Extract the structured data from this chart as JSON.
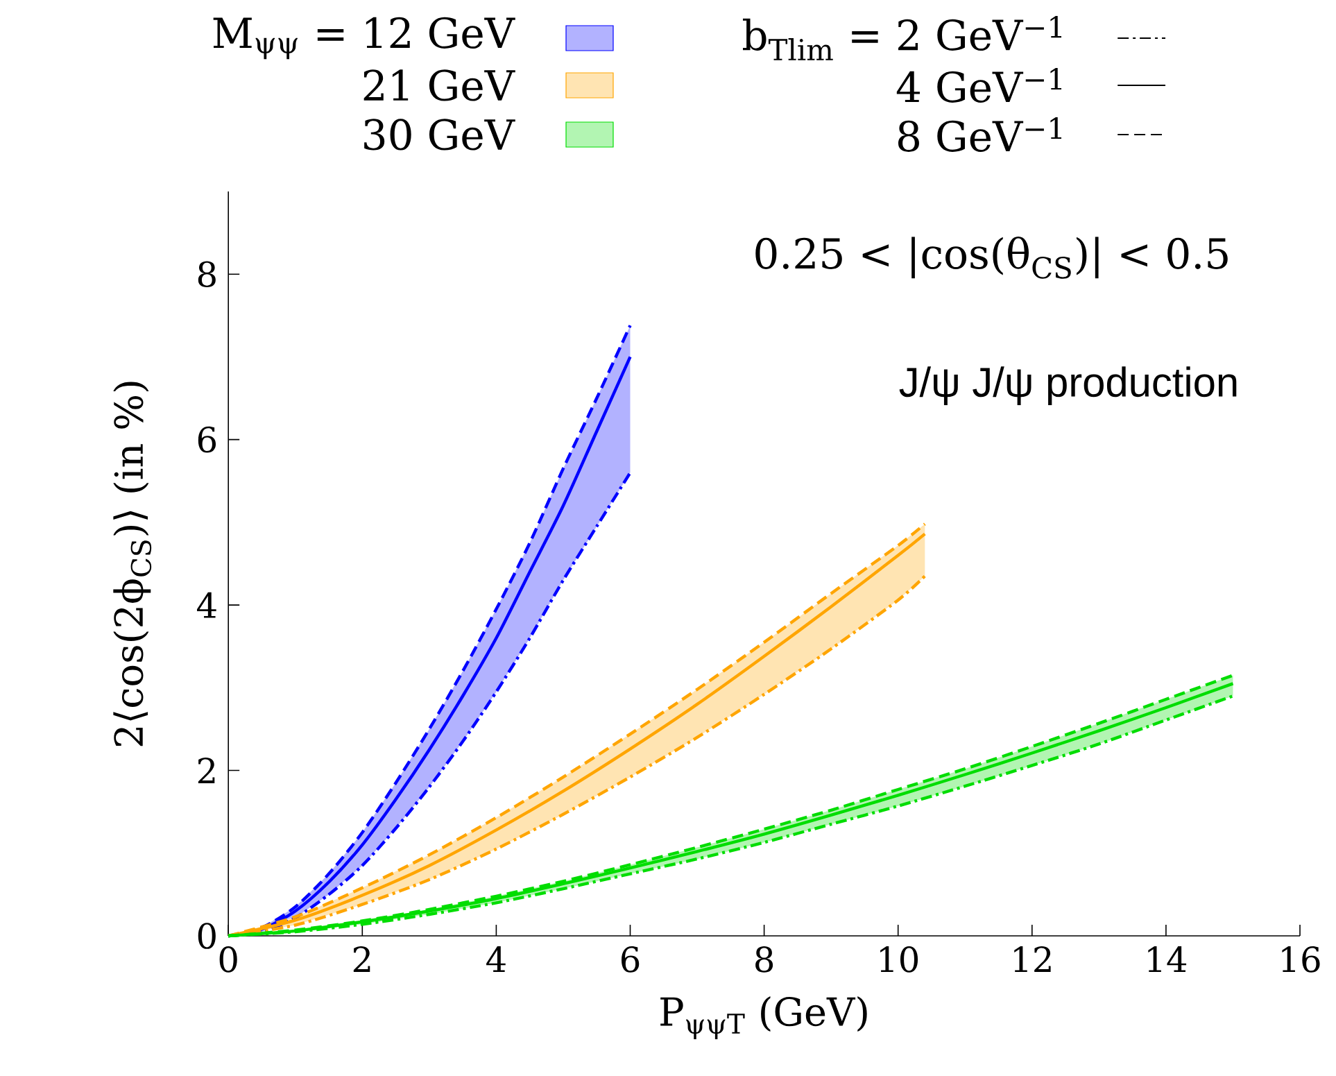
{
  "chart_data": {
    "type": "line",
    "xlabel": "P$_{ψψT}$ (GeV)",
    "ylabel": "2⟨cos(2ϕ$_{CS}$)⟩ (in %)",
    "xlim": [
      0,
      16
    ],
    "ylim": [
      0,
      9
    ],
    "xticks": [
      0,
      2,
      4,
      6,
      8,
      10,
      12,
      14,
      16
    ],
    "yticks": [
      0,
      2,
      4,
      6,
      8
    ],
    "legend": "top",
    "marker": "none",
    "series": [
      {
        "color": "#0000ff",
        "line_style": "dashdot",
        "x": [
          0,
          0.5,
          1,
          1.5,
          2,
          2.5,
          3,
          3.5,
          4,
          4.5,
          5,
          5.5,
          6
        ],
        "values": [
          0,
          0.05,
          0.22,
          0.5,
          0.85,
          1.3,
          1.8,
          2.35,
          2.95,
          3.6,
          4.3,
          4.95,
          5.6
        ]
      },
      {
        "name": "M$_{ψψ}$ = 12 GeV",
        "color": "#0000ff",
        "line_style": "solid",
        "x": [
          0,
          0.5,
          1,
          1.5,
          2,
          2.5,
          3,
          3.5,
          4,
          4.5,
          5,
          5.5,
          6
        ],
        "values": [
          0,
          0.08,
          0.3,
          0.65,
          1.1,
          1.65,
          2.25,
          2.9,
          3.6,
          4.4,
          5.2,
          6.1,
          7.0
        ],
        "upper": [
          0,
          0.1,
          0.35,
          0.75,
          1.25,
          1.85,
          2.5,
          3.2,
          3.95,
          4.75,
          5.65,
          6.5,
          7.38
        ],
        "lower": [
          0,
          0.05,
          0.22,
          0.5,
          0.85,
          1.3,
          1.8,
          2.35,
          2.95,
          3.6,
          4.3,
          4.95,
          5.6
        ]
      },
      {
        "color": "#0000ff",
        "line_style": "dashed",
        "x": [
          0,
          0.5,
          1,
          1.5,
          2,
          2.5,
          3,
          3.5,
          4,
          4.5,
          5,
          5.5,
          6
        ],
        "values": [
          0,
          0.1,
          0.35,
          0.75,
          1.25,
          1.85,
          2.5,
          3.2,
          3.95,
          4.75,
          5.65,
          6.5,
          7.38
        ]
      },
      {
        "color": "#ffa500",
        "line_style": "dashdot",
        "x": [
          0,
          1,
          2,
          3,
          4,
          5,
          6,
          7,
          8,
          9,
          10,
          10.4
        ],
        "values": [
          0,
          0.13,
          0.38,
          0.68,
          1.05,
          1.47,
          1.92,
          2.4,
          2.92,
          3.47,
          4.06,
          4.35
        ]
      },
      {
        "name": "21 GeV",
        "color": "#ffa500",
        "line_style": "solid",
        "x": [
          0,
          1,
          2,
          3,
          4,
          5,
          6,
          7,
          8,
          9,
          10,
          10.4
        ],
        "values": [
          0,
          0.19,
          0.49,
          0.85,
          1.28,
          1.75,
          2.26,
          2.8,
          3.38,
          3.98,
          4.6,
          4.86
        ],
        "upper": [
          0,
          0.23,
          0.58,
          0.98,
          1.43,
          1.92,
          2.44,
          2.98,
          3.55,
          4.14,
          4.72,
          4.98
        ],
        "lower": [
          0,
          0.13,
          0.38,
          0.68,
          1.05,
          1.47,
          1.92,
          2.4,
          2.92,
          3.47,
          4.06,
          4.35
        ]
      },
      {
        "color": "#ffa500",
        "line_style": "dashed",
        "x": [
          0,
          1,
          2,
          3,
          4,
          5,
          6,
          7,
          8,
          9,
          10,
          10.4
        ],
        "values": [
          0,
          0.23,
          0.58,
          0.98,
          1.43,
          1.92,
          2.44,
          2.98,
          3.55,
          4.14,
          4.72,
          4.98
        ]
      },
      {
        "color": "#00dd00",
        "line_style": "dashdot",
        "x": [
          0,
          1,
          2,
          3,
          4,
          5,
          6,
          7,
          8,
          9,
          10,
          11,
          12,
          13,
          14,
          15
        ],
        "values": [
          0,
          0.05,
          0.14,
          0.26,
          0.4,
          0.57,
          0.75,
          0.93,
          1.13,
          1.35,
          1.57,
          1.81,
          2.06,
          2.32,
          2.61,
          2.9
        ]
      },
      {
        "name": "30 GeV",
        "color": "#00dd00",
        "line_style": "solid",
        "x": [
          0,
          1,
          2,
          3,
          4,
          5,
          6,
          7,
          8,
          9,
          10,
          11,
          12,
          13,
          14,
          15
        ],
        "values": [
          0,
          0.06,
          0.17,
          0.3,
          0.45,
          0.63,
          0.82,
          1.02,
          1.23,
          1.46,
          1.7,
          1.95,
          2.21,
          2.48,
          2.76,
          3.05
        ],
        "upper": [
          0,
          0.07,
          0.18,
          0.32,
          0.48,
          0.66,
          0.86,
          1.07,
          1.29,
          1.52,
          1.77,
          2.02,
          2.29,
          2.57,
          2.86,
          3.15
        ],
        "lower": [
          0,
          0.05,
          0.14,
          0.26,
          0.4,
          0.57,
          0.75,
          0.93,
          1.13,
          1.35,
          1.57,
          1.81,
          2.06,
          2.32,
          2.61,
          2.9
        ]
      },
      {
        "color": "#00dd00",
        "line_style": "dashed",
        "x": [
          0,
          1,
          2,
          3,
          4,
          5,
          6,
          7,
          8,
          9,
          10,
          11,
          12,
          13,
          14,
          15
        ],
        "values": [
          0,
          0.07,
          0.18,
          0.32,
          0.48,
          0.66,
          0.86,
          1.07,
          1.29,
          1.52,
          1.77,
          2.02,
          2.29,
          2.57,
          2.86,
          3.15
        ]
      }
    ],
    "annotations": [
      "b$_{Tlim}$ = 2 GeV$^{−1}$",
      "4 GeV$^{−1}$",
      "8 GeV$^{−1}$",
      "0.25 < |cos(θ$_{CS}$)| < 0.5",
      "J/ψ J/ψ production"
    ]
  }
}
